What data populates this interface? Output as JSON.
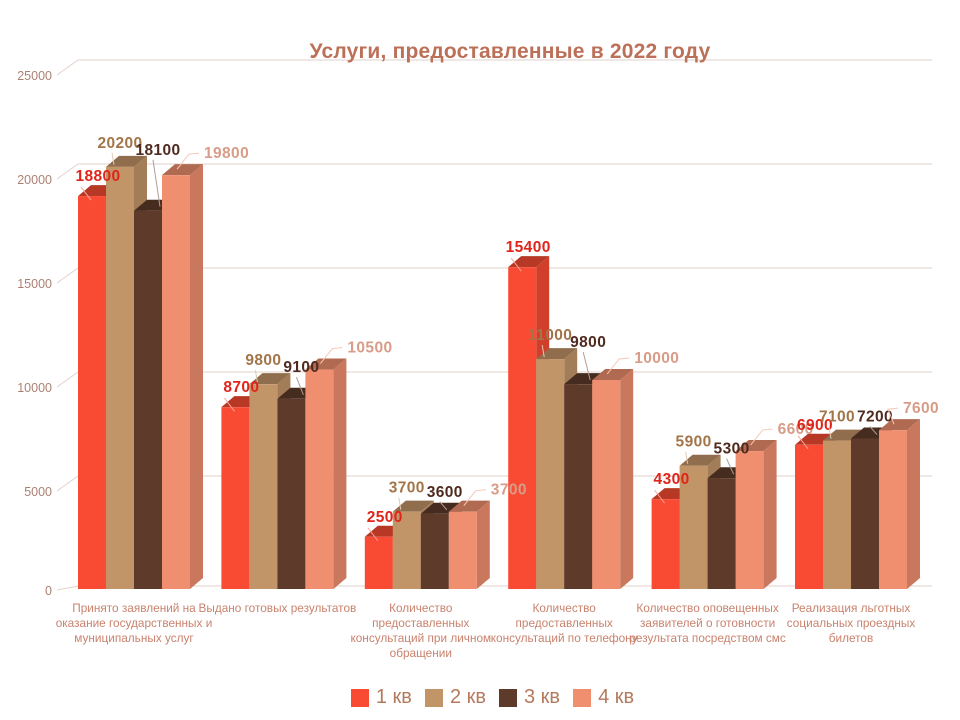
{
  "chart_data": {
    "type": "bar",
    "variant": "3d-clustered-column",
    "title": "Услуги, предоставленные в 2022 году",
    "categories": [
      "Принято заявлений на оказание государственных и муниципальных услуг",
      "Выдано готовых результатов",
      "Количество предоставленных консультаций при личном обращении",
      "Количество предоставленных консультаций по телефону",
      "Количество оповещенных заявителей о готовности результата посредством смс",
      "Реализация льготных социальных проездных билетов"
    ],
    "series": [
      {
        "name": "1 кв",
        "color": "#f94b33",
        "label_color": "#e0241a",
        "values": [
          18800,
          8700,
          2500,
          15400,
          4300,
          6900
        ]
      },
      {
        "name": "2 кв",
        "color": "#c29568",
        "label_color": "#a27549",
        "values": [
          20200,
          9800,
          3700,
          11000,
          5900,
          7100
        ]
      },
      {
        "name": "3 кв",
        "color": "#5e3a2a",
        "label_color": "#4f2a1f",
        "values": [
          18100,
          9100,
          3600,
          9800,
          5300,
          7200
        ]
      },
      {
        "name": "4 кв",
        "color": "#ef8f6f",
        "label_color": "#d89c88",
        "values": [
          19800,
          10500,
          3700,
          10000,
          6600,
          7600
        ]
      }
    ],
    "y_ticks": [
      0,
      5000,
      10000,
      15000,
      20000,
      25000
    ],
    "ylim": [
      0,
      25000
    ],
    "legend_position": "bottom",
    "gridlines": true
  },
  "colors": {
    "background": "#ffffff",
    "grid": "#e2d2ca",
    "axis_text": "#ab8073",
    "category_text": "#c9826d",
    "title_text": "#bc7058",
    "legend_text": "#b5795c"
  }
}
